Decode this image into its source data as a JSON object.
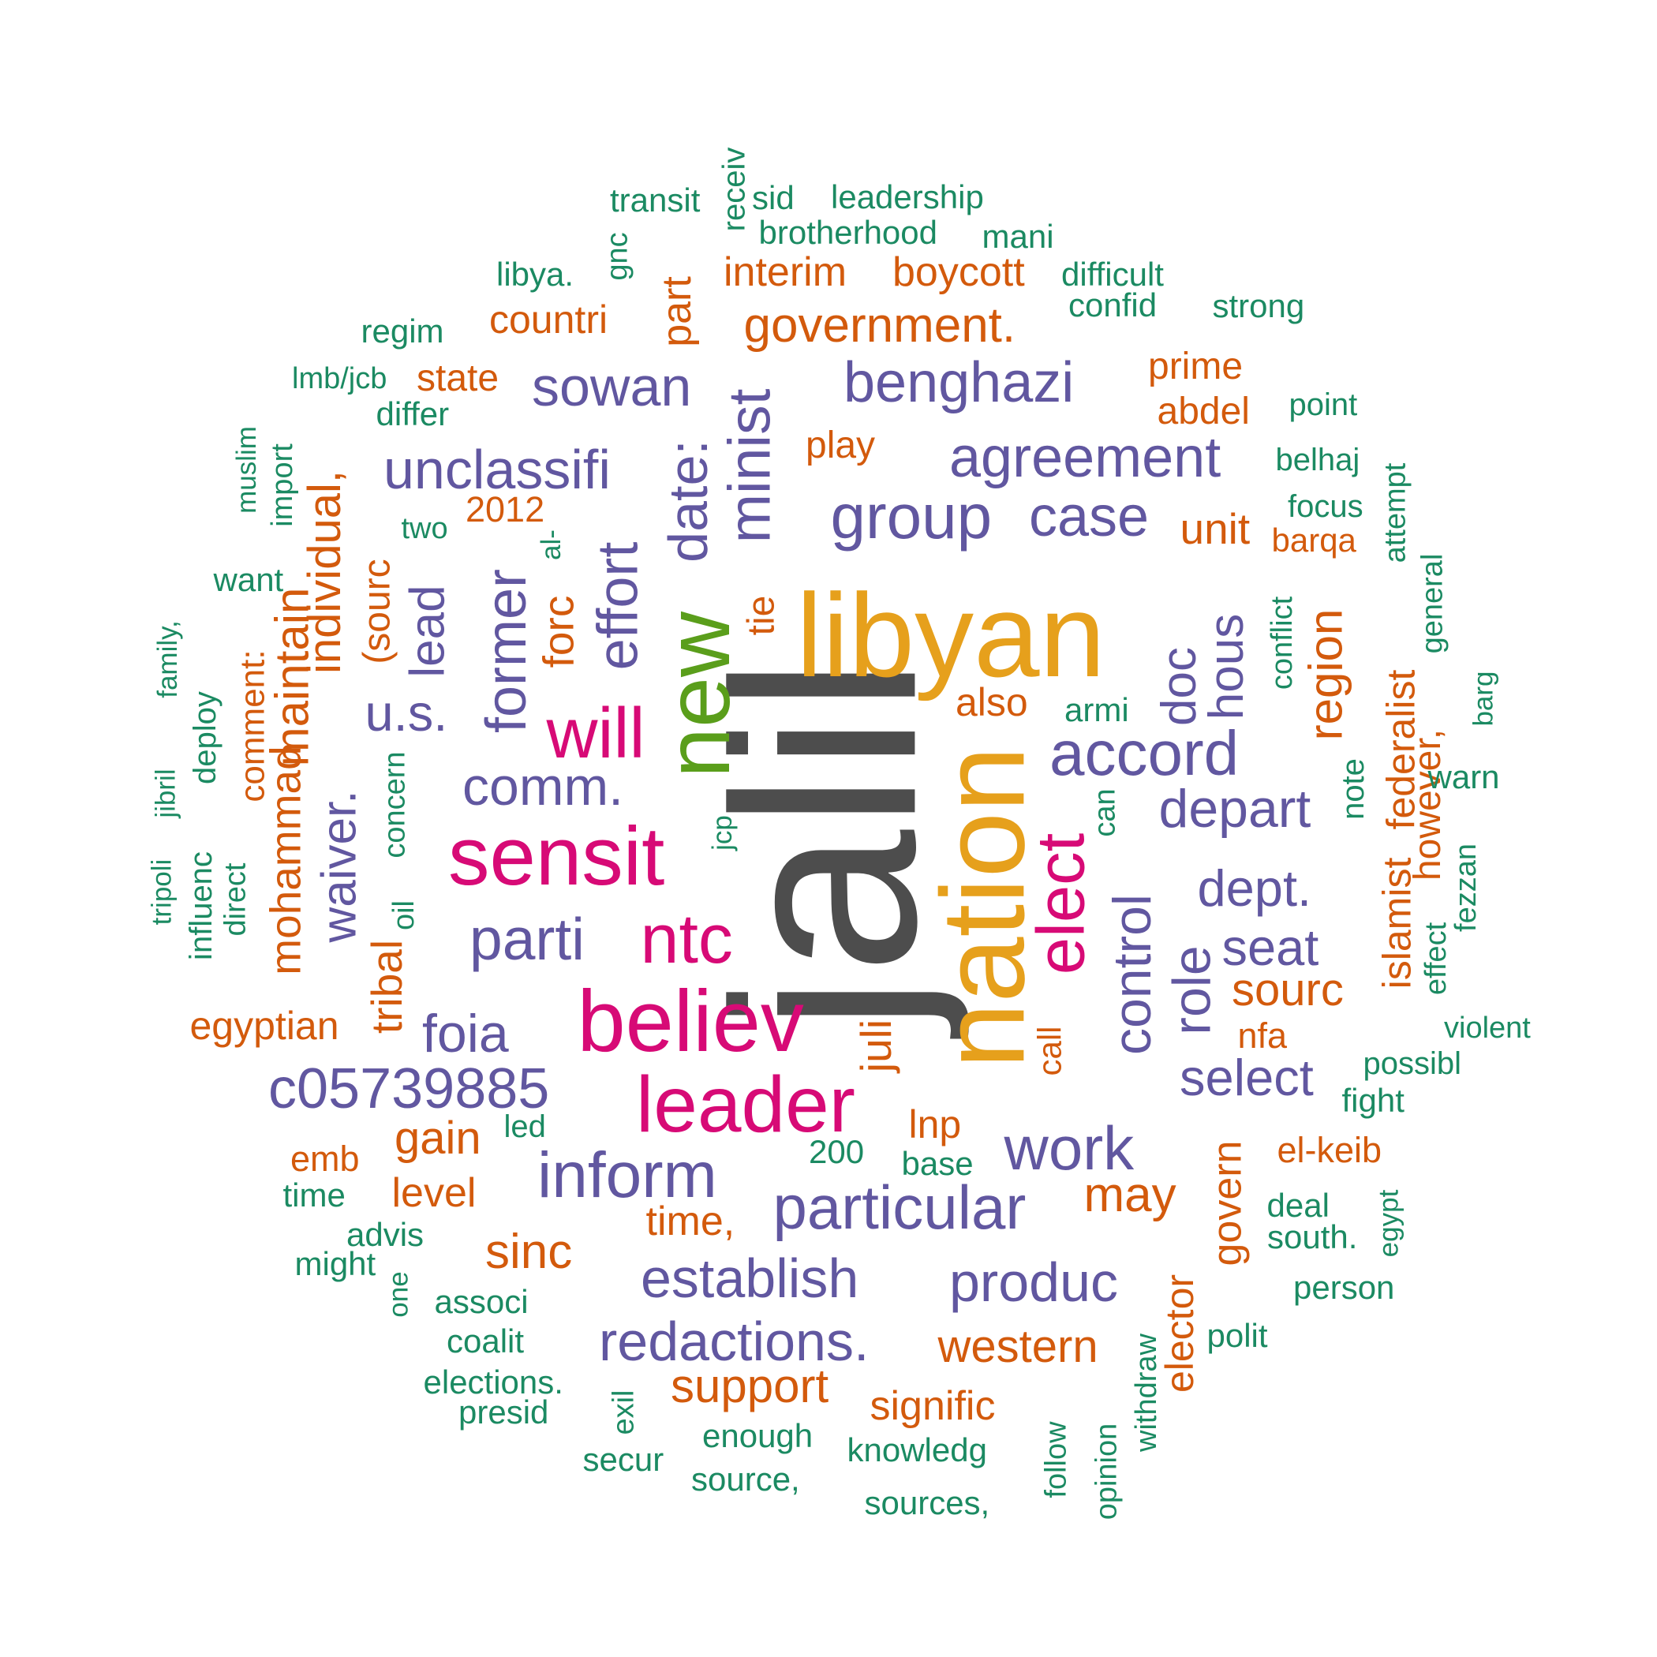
{
  "colors": {
    "dark_gray": "#4d4d4d",
    "gold": "#e6a01c",
    "green": "#5a9e1b",
    "magenta": "#d70a76",
    "purple": "#6157a0",
    "orange": "#d35a0c",
    "teal": "#1b8a62"
  },
  "words": [
    {
      "text": "jalil",
      "color": "dark_gray",
      "rotated": true
    },
    {
      "text": "libyan",
      "color": "gold",
      "rotated": false
    },
    {
      "text": "nation",
      "color": "gold",
      "rotated": true
    },
    {
      "text": "new",
      "color": "green",
      "rotated": true
    },
    {
      "text": "sensit",
      "color": "magenta",
      "rotated": false
    },
    {
      "text": "believ",
      "color": "magenta",
      "rotated": false
    },
    {
      "text": "leader",
      "color": "magenta",
      "rotated": false
    },
    {
      "text": "will",
      "color": "magenta",
      "rotated": false
    },
    {
      "text": "ntc",
      "color": "magenta",
      "rotated": false
    },
    {
      "text": "elect",
      "color": "magenta",
      "rotated": true
    },
    {
      "text": "group",
      "color": "purple",
      "rotated": false
    },
    {
      "text": "accord",
      "color": "purple",
      "rotated": false
    },
    {
      "text": "agreement",
      "color": "purple",
      "rotated": false
    },
    {
      "text": "benghazi",
      "color": "purple",
      "rotated": false
    },
    {
      "text": "case",
      "color": "purple",
      "rotated": false
    },
    {
      "text": "minist",
      "color": "purple",
      "rotated": true
    },
    {
      "text": "date:",
      "color": "purple",
      "rotated": true
    },
    {
      "text": "effort",
      "color": "purple",
      "rotated": true
    },
    {
      "text": "former",
      "color": "purple",
      "rotated": true
    },
    {
      "text": "lead",
      "color": "purple",
      "rotated": true
    },
    {
      "text": "sowan",
      "color": "purple",
      "rotated": false
    },
    {
      "text": "unclassifi",
      "color": "purple",
      "rotated": false
    },
    {
      "text": "u.s.",
      "color": "purple",
      "rotated": false
    },
    {
      "text": "comm.",
      "color": "purple",
      "rotated": false
    },
    {
      "text": "parti",
      "color": "purple",
      "rotated": false
    },
    {
      "text": "waiver.",
      "color": "purple",
      "rotated": true
    },
    {
      "text": "foia",
      "color": "purple",
      "rotated": false
    },
    {
      "text": "c05739885",
      "color": "purple",
      "rotated": false
    },
    {
      "text": "inform",
      "color": "purple",
      "rotated": false
    },
    {
      "text": "particular",
      "color": "purple",
      "rotated": false
    },
    {
      "text": "work",
      "color": "purple",
      "rotated": false
    },
    {
      "text": "establish",
      "color": "purple",
      "rotated": false
    },
    {
      "text": "redactions.",
      "color": "purple",
      "rotated": false
    },
    {
      "text": "produc",
      "color": "purple",
      "rotated": false
    },
    {
      "text": "depart",
      "color": "purple",
      "rotated": false
    },
    {
      "text": "dept.",
      "color": "purple",
      "rotated": false
    },
    {
      "text": "seat",
      "color": "purple",
      "rotated": false
    },
    {
      "text": "select",
      "color": "purple",
      "rotated": false
    },
    {
      "text": "control",
      "color": "purple",
      "rotated": true
    },
    {
      "text": "role",
      "color": "purple",
      "rotated": true
    },
    {
      "text": "doc",
      "color": "purple",
      "rotated": true
    },
    {
      "text": "hous",
      "color": "purple",
      "rotated": true
    },
    {
      "text": "government.",
      "color": "orange",
      "rotated": false
    },
    {
      "text": "interim",
      "color": "orange",
      "rotated": false
    },
    {
      "text": "boycott",
      "color": "orange",
      "rotated": false
    },
    {
      "text": "countri",
      "color": "orange",
      "rotated": false
    },
    {
      "text": "part",
      "color": "orange",
      "rotated": true
    },
    {
      "text": "state",
      "color": "orange",
      "rotated": false
    },
    {
      "text": "prime",
      "color": "orange",
      "rotated": false
    },
    {
      "text": "abdel",
      "color": "orange",
      "rotated": false
    },
    {
      "text": "play",
      "color": "orange",
      "rotated": false
    },
    {
      "text": "unit",
      "color": "orange",
      "rotated": false
    },
    {
      "text": "barqa",
      "color": "orange",
      "rotated": false
    },
    {
      "text": "2012",
      "color": "orange",
      "rotated": false
    },
    {
      "text": "individual,",
      "color": "orange",
      "rotated": true
    },
    {
      "text": "(sourc",
      "color": "orange",
      "rotated": true
    },
    {
      "text": "forc",
      "color": "orange",
      "rotated": true
    },
    {
      "text": "tie",
      "color": "orange",
      "rotated": true
    },
    {
      "text": "maintain",
      "color": "orange",
      "rotated": true
    },
    {
      "text": "mohammad",
      "color": "orange",
      "rotated": true
    },
    {
      "text": "comment:",
      "color": "orange",
      "rotated": true
    },
    {
      "text": "tribal",
      "color": "orange",
      "rotated": true
    },
    {
      "text": "region",
      "color": "orange",
      "rotated": true
    },
    {
      "text": "also",
      "color": "orange",
      "rotated": false
    },
    {
      "text": "egyptian",
      "color": "orange",
      "rotated": false
    },
    {
      "text": "juli",
      "color": "orange",
      "rotated": true
    },
    {
      "text": "sourc",
      "color": "orange",
      "rotated": false
    },
    {
      "text": "nfa",
      "color": "orange",
      "rotated": false
    },
    {
      "text": "call",
      "color": "orange",
      "rotated": true
    },
    {
      "text": "lnp",
      "color": "orange",
      "rotated": false
    },
    {
      "text": "gain",
      "color": "orange",
      "rotated": false
    },
    {
      "text": "emb",
      "color": "orange",
      "rotated": false
    },
    {
      "text": "level",
      "color": "orange",
      "rotated": false
    },
    {
      "text": "may",
      "color": "orange",
      "rotated": false
    },
    {
      "text": "time,",
      "color": "orange",
      "rotated": false
    },
    {
      "text": "sinc",
      "color": "orange",
      "rotated": false
    },
    {
      "text": "el-keib",
      "color": "orange",
      "rotated": false
    },
    {
      "text": "govern",
      "color": "orange",
      "rotated": true
    },
    {
      "text": "western",
      "color": "orange",
      "rotated": false
    },
    {
      "text": "elector",
      "color": "orange",
      "rotated": true
    },
    {
      "text": "support",
      "color": "orange",
      "rotated": false
    },
    {
      "text": "signific",
      "color": "orange",
      "rotated": false
    },
    {
      "text": "islamist",
      "color": "orange",
      "rotated": true
    },
    {
      "text": "federalist",
      "color": "orange",
      "rotated": true
    },
    {
      "text": "however,",
      "color": "orange",
      "rotated": true
    },
    {
      "text": "transit",
      "color": "teal",
      "rotated": false
    },
    {
      "text": "receiv",
      "color": "teal",
      "rotated": true
    },
    {
      "text": "sid",
      "color": "teal",
      "rotated": false
    },
    {
      "text": "leadership",
      "color": "teal",
      "rotated": false
    },
    {
      "text": "brotherhood",
      "color": "teal",
      "rotated": false
    },
    {
      "text": "mani",
      "color": "teal",
      "rotated": false
    },
    {
      "text": "gnc",
      "color": "teal",
      "rotated": true
    },
    {
      "text": "libya.",
      "color": "teal",
      "rotated": false
    },
    {
      "text": "difficult",
      "color": "teal",
      "rotated": false
    },
    {
      "text": "confid",
      "color": "teal",
      "rotated": false
    },
    {
      "text": "strong",
      "color": "teal",
      "rotated": false
    },
    {
      "text": "regim",
      "color": "teal",
      "rotated": false
    },
    {
      "text": "lmb/jcb",
      "color": "teal",
      "rotated": false
    },
    {
      "text": "differ",
      "color": "teal",
      "rotated": false
    },
    {
      "text": "point",
      "color": "teal",
      "rotated": false
    },
    {
      "text": "belhaj",
      "color": "teal",
      "rotated": false
    },
    {
      "text": "focus",
      "color": "teal",
      "rotated": false
    },
    {
      "text": "muslim",
      "color": "teal",
      "rotated": true
    },
    {
      "text": "import",
      "color": "teal",
      "rotated": true
    },
    {
      "text": "two",
      "color": "teal",
      "rotated": false
    },
    {
      "text": "al-",
      "color": "teal",
      "rotated": true
    },
    {
      "text": "want",
      "color": "teal",
      "rotated": false
    },
    {
      "text": "attempt",
      "color": "teal",
      "rotated": true
    },
    {
      "text": "general",
      "color": "teal",
      "rotated": true
    },
    {
      "text": "conflict",
      "color": "teal",
      "rotated": true
    },
    {
      "text": "family,",
      "color": "teal",
      "rotated": true
    },
    {
      "text": "deploy",
      "color": "teal",
      "rotated": true
    },
    {
      "text": "barg",
      "color": "teal",
      "rotated": true
    },
    {
      "text": "armi",
      "color": "teal",
      "rotated": false
    },
    {
      "text": "jibril",
      "color": "teal",
      "rotated": true
    },
    {
      "text": "warn",
      "color": "teal",
      "rotated": false
    },
    {
      "text": "note",
      "color": "teal",
      "rotated": true
    },
    {
      "text": "can",
      "color": "teal",
      "rotated": true
    },
    {
      "text": "jcp",
      "color": "teal",
      "rotated": true
    },
    {
      "text": "concern",
      "color": "teal",
      "rotated": true
    },
    {
      "text": "tripoli",
      "color": "teal",
      "rotated": true
    },
    {
      "text": "influenc",
      "color": "teal",
      "rotated": true
    },
    {
      "text": "direct",
      "color": "teal",
      "rotated": true
    },
    {
      "text": "oil",
      "color": "teal",
      "rotated": true
    },
    {
      "text": "fezzan",
      "color": "teal",
      "rotated": true
    },
    {
      "text": "effect",
      "color": "teal",
      "rotated": true
    },
    {
      "text": "violent",
      "color": "teal",
      "rotated": false
    },
    {
      "text": "possibl",
      "color": "teal",
      "rotated": false
    },
    {
      "text": "fight",
      "color": "teal",
      "rotated": false
    },
    {
      "text": "led",
      "color": "teal",
      "rotated": false
    },
    {
      "text": "200",
      "color": "teal",
      "rotated": false
    },
    {
      "text": "base",
      "color": "teal",
      "rotated": false
    },
    {
      "text": "time",
      "color": "teal",
      "rotated": false
    },
    {
      "text": "advis",
      "color": "teal",
      "rotated": false
    },
    {
      "text": "might",
      "color": "teal",
      "rotated": false
    },
    {
      "text": "one",
      "color": "teal",
      "rotated": true
    },
    {
      "text": "associ",
      "color": "teal",
      "rotated": false
    },
    {
      "text": "coalit",
      "color": "teal",
      "rotated": false
    },
    {
      "text": "elections.",
      "color": "teal",
      "rotated": false
    },
    {
      "text": "presid",
      "color": "teal",
      "rotated": false
    },
    {
      "text": "exil",
      "color": "teal",
      "rotated": true
    },
    {
      "text": "enough",
      "color": "teal",
      "rotated": false
    },
    {
      "text": "secur",
      "color": "teal",
      "rotated": false
    },
    {
      "text": "source,",
      "color": "teal",
      "rotated": false
    },
    {
      "text": "knowledg",
      "color": "teal",
      "rotated": false
    },
    {
      "text": "sources,",
      "color": "teal",
      "rotated": false
    },
    {
      "text": "follow",
      "color": "teal",
      "rotated": true
    },
    {
      "text": "opinion",
      "color": "teal",
      "rotated": true
    },
    {
      "text": "withdraw",
      "color": "teal",
      "rotated": true
    },
    {
      "text": "deal",
      "color": "teal",
      "rotated": false
    },
    {
      "text": "south.",
      "color": "teal",
      "rotated": false
    },
    {
      "text": "egypt",
      "color": "teal",
      "rotated": true
    },
    {
      "text": "person",
      "color": "teal",
      "rotated": false
    },
    {
      "text": "polit",
      "color": "teal",
      "rotated": false
    }
  ]
}
